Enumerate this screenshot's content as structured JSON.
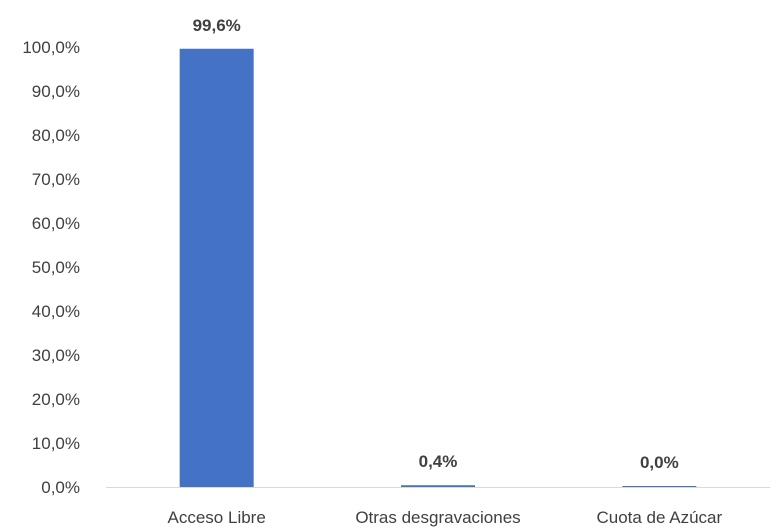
{
  "chart_data": {
    "type": "bar",
    "title": "",
    "xlabel": "",
    "ylabel": "",
    "categories": [
      "Acceso Libre",
      "Otras desgravaciones",
      "Cuota de Azúcar"
    ],
    "values": [
      99.6,
      0.4,
      0.0
    ],
    "data_labels": [
      "99,6%",
      "0,4%",
      "0,0%"
    ],
    "ylim": [
      0,
      100
    ],
    "yticks": [
      0,
      10,
      20,
      30,
      40,
      50,
      60,
      70,
      80,
      90,
      100
    ],
    "ytick_labels": [
      "0,0%",
      "10,0%",
      "20,0%",
      "30,0%",
      "40,0%",
      "50,0%",
      "60,0%",
      "70,0%",
      "80,0%",
      "90,0%",
      "100,0%"
    ],
    "grid": false,
    "legend": "none",
    "colors": {
      "bar": "#4472C4",
      "axis": "#D9D9D9",
      "text": "#404040"
    }
  }
}
